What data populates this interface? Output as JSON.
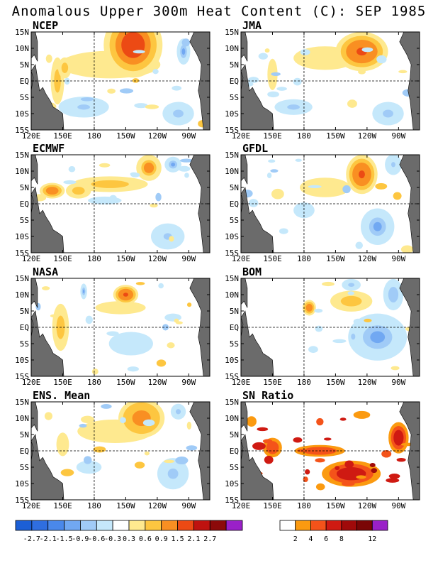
{
  "title": "Anomalous Upper 300m Heat Content (C): SEP 1985",
  "axes": {
    "y_labels": [
      "15N",
      "10N",
      "5N",
      "EQ",
      "5S",
      "10S",
      "15S"
    ],
    "x_labels": [
      "120E",
      "150E",
      "180",
      "150W",
      "120W",
      "90W"
    ]
  },
  "panels": [
    {
      "id": "ncep",
      "label": "NCEP",
      "blobs": [
        {
          "x": 217,
          "y": 11,
          "a": 28,
          "b": 10,
          "v": 1.9
        },
        {
          "x": 195,
          "y": 5,
          "a": 80,
          "b": 7,
          "v": 0.6
        },
        {
          "x": 95,
          "y": 6,
          "a": 55,
          "b": 7,
          "v": 0.4
        },
        {
          "x": 145,
          "y": 0,
          "a": 8,
          "b": 9,
          "v": 0.8
        },
        {
          "x": 152,
          "y": 4,
          "a": 8,
          "b": 4,
          "v": 0.8
        },
        {
          "x": 170,
          "y": -8,
          "a": 30,
          "b": 4,
          "v": -0.7
        },
        {
          "x": 260,
          "y": -10,
          "a": 25,
          "b": 6,
          "v": -0.6
        },
        {
          "x": 265,
          "y": 9,
          "a": 8,
          "b": 5,
          "v": -0.9
        }
      ]
    },
    {
      "id": "jma",
      "label": "JMA",
      "blobs": [
        {
          "x": 235,
          "y": 9,
          "a": 25,
          "b": 6,
          "v": 1.6
        },
        {
          "x": 200,
          "y": 7,
          "a": 50,
          "b": 6,
          "v": 0.6
        },
        {
          "x": 170,
          "y": -8,
          "a": 30,
          "b": 4,
          "v": -0.6
        },
        {
          "x": 260,
          "y": -10,
          "a": 25,
          "b": 6,
          "v": -0.6
        },
        {
          "x": 150,
          "y": 2,
          "a": 8,
          "b": 8,
          "v": 0.5
        },
        {
          "x": 250,
          "y": 10,
          "a": 8,
          "b": 4,
          "v": -0.9
        }
      ]
    },
    {
      "id": "ecmwf",
      "label": "ECMWF",
      "blobs": [
        {
          "x": 232,
          "y": 11,
          "a": 12,
          "b": 4,
          "v": 1.3
        },
        {
          "x": 195,
          "y": 6,
          "a": 45,
          "b": 3,
          "v": 0.9
        },
        {
          "x": 140,
          "y": 4,
          "a": 15,
          "b": 3,
          "v": 1.2
        },
        {
          "x": 165,
          "y": 4,
          "a": 15,
          "b": 3,
          "v": 0.9
        },
        {
          "x": 250,
          "y": -10,
          "a": 20,
          "b": 5,
          "v": -0.7
        },
        {
          "x": 190,
          "y": 1,
          "a": 40,
          "b": 3,
          "v": -0.4
        },
        {
          "x": 255,
          "y": 12,
          "a": 10,
          "b": 3,
          "v": -0.9
        }
      ]
    },
    {
      "id": "gfdl",
      "label": "GFDL",
      "blobs": [
        {
          "x": 235,
          "y": 9,
          "a": 15,
          "b": 6,
          "v": 1.8
        },
        {
          "x": 200,
          "y": 5,
          "a": 40,
          "b": 5,
          "v": 0.5
        },
        {
          "x": 155,
          "y": 3,
          "a": 15,
          "b": 4,
          "v": 0.4
        },
        {
          "x": 250,
          "y": -7,
          "a": 20,
          "b": 7,
          "v": -0.9
        },
        {
          "x": 180,
          "y": -2,
          "a": 25,
          "b": 6,
          "v": -0.4
        },
        {
          "x": 265,
          "y": 12,
          "a": 10,
          "b": 4,
          "v": -0.7
        }
      ]
    },
    {
      "id": "nasa",
      "label": "NASA",
      "blobs": [
        {
          "x": 210,
          "y": 10,
          "a": 12,
          "b": 3,
          "v": 1.7
        },
        {
          "x": 205,
          "y": 6,
          "a": 60,
          "b": 5,
          "v": 0.4
        },
        {
          "x": 148,
          "y": 0,
          "a": 10,
          "b": 9,
          "v": 0.9
        },
        {
          "x": 170,
          "y": 11,
          "a": 4,
          "b": 3,
          "v": -0.9
        },
        {
          "x": 215,
          "y": -5,
          "a": 35,
          "b": 6,
          "v": -0.5
        },
        {
          "x": 255,
          "y": 3,
          "a": 20,
          "b": 3,
          "v": -0.4
        }
      ]
    },
    {
      "id": "bom",
      "label": "BOM",
      "blobs": [
        {
          "x": 185,
          "y": 6,
          "a": 8,
          "b": 3,
          "v": 1.2
        },
        {
          "x": 225,
          "y": 8,
          "a": 25,
          "b": 4,
          "v": 0.9
        },
        {
          "x": 250,
          "y": -3,
          "a": 35,
          "b": 9,
          "v": -0.9
        },
        {
          "x": 225,
          "y": 13,
          "a": 15,
          "b": 3,
          "v": -0.6
        },
        {
          "x": 265,
          "y": 10,
          "a": 12,
          "b": 6,
          "v": -0.8
        }
      ]
    },
    {
      "id": "ens",
      "label": "ENS. Mean",
      "blobs": [
        {
          "x": 225,
          "y": 10,
          "a": 22,
          "b": 6,
          "v": 1.4
        },
        {
          "x": 200,
          "y": 6,
          "a": 60,
          "b": 6,
          "v": 0.5
        },
        {
          "x": 150,
          "y": 2,
          "a": 10,
          "b": 6,
          "v": 0.6
        },
        {
          "x": 255,
          "y": -7,
          "a": 25,
          "b": 8,
          "v": -0.6
        },
        {
          "x": 175,
          "y": -5,
          "a": 30,
          "b": 5,
          "v": -0.4
        },
        {
          "x": 260,
          "y": 12,
          "a": 12,
          "b": 4,
          "v": -0.6
        }
      ]
    },
    {
      "id": "sn",
      "label": "SN Ratio",
      "blobs": [
        {
          "x": 225,
          "y": -7,
          "a": 35,
          "b": 5,
          "v": 6
        },
        {
          "x": 150,
          "y": 1,
          "a": 15,
          "b": 5,
          "v": 4
        },
        {
          "x": 195,
          "y": 0,
          "a": 40,
          "b": 3,
          "v": 4
        },
        {
          "x": 270,
          "y": 4,
          "a": 12,
          "b": 6,
          "v": 5
        },
        {
          "x": 235,
          "y": 11,
          "a": 20,
          "b": 3,
          "v": 3
        },
        {
          "x": 130,
          "y": 9,
          "a": 12,
          "b": 4,
          "v": 3
        }
      ]
    }
  ],
  "colorbar_heat": {
    "colors": [
      "#1c5fd6",
      "#2f6ee0",
      "#4a88ea",
      "#71a8f2",
      "#a0cbf7",
      "#c5e8fb",
      "#ffffff",
      "#fee98f",
      "#fdc640",
      "#f98f22",
      "#ec4a14",
      "#bf120f",
      "#8c0a0a",
      "#9a20c8"
    ],
    "labels": [
      "-2.7",
      "-2.1",
      "-1.5",
      "-0.9",
      "-0.6",
      "-0.3",
      "0.3",
      "0.6",
      "0.9",
      "1.5",
      "2.1",
      "2.7"
    ]
  },
  "colorbar_sn": {
    "colors": [
      "#ffffff",
      "#fb9a10",
      "#f4531a",
      "#cf1a12",
      "#a00a0a",
      "#7a0606",
      "#9a20c8"
    ],
    "labels": [
      "2",
      "4",
      "6",
      "8",
      "12"
    ]
  }
}
